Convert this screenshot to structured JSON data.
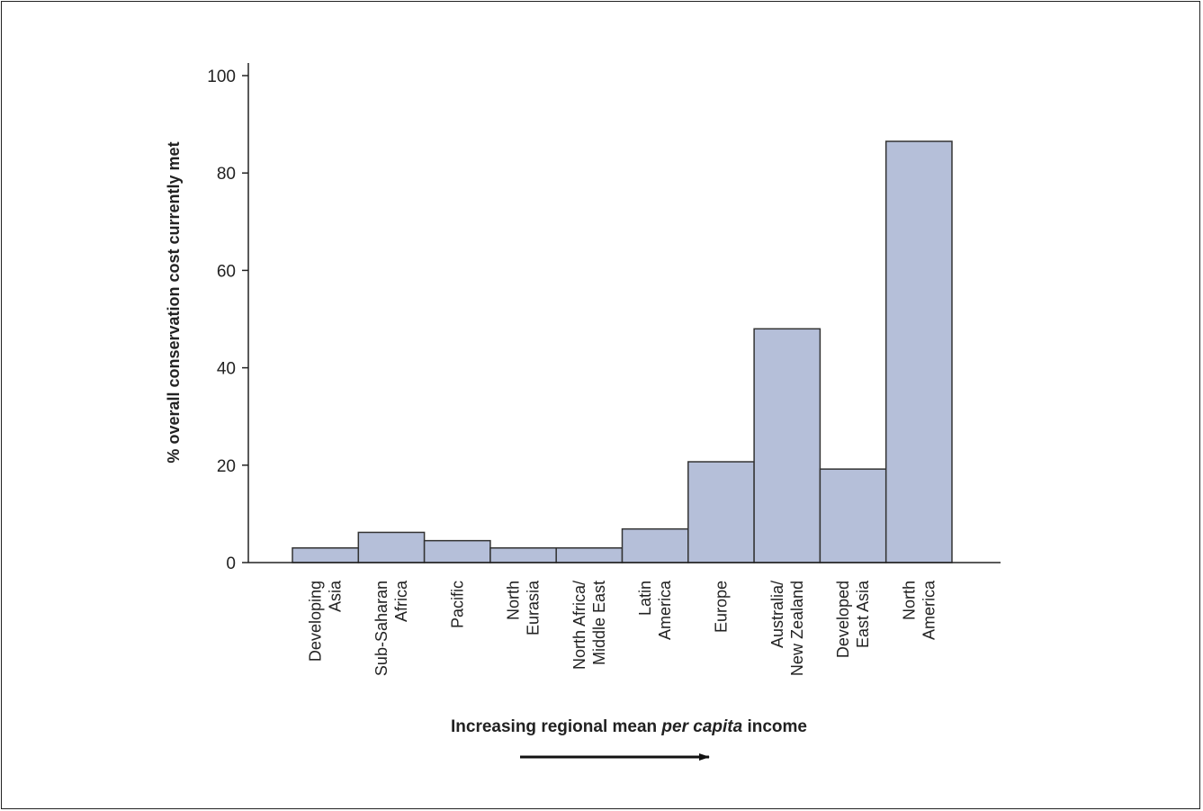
{
  "chart_data": {
    "type": "bar",
    "categories": [
      [
        "Developing",
        "Asia"
      ],
      [
        "Sub-Saharan",
        "Africa"
      ],
      [
        "Pacific"
      ],
      [
        "North",
        "Eurasia"
      ],
      [
        "North Africa/",
        "Middle East"
      ],
      [
        "Latin",
        "America"
      ],
      [
        "Europe"
      ],
      [
        "Australia/",
        "New Zealand"
      ],
      [
        "Developed",
        "East Asia"
      ],
      [
        "North",
        "America"
      ]
    ],
    "values": [
      3,
      6.2,
      4.5,
      3,
      3,
      6.9,
      20.7,
      48,
      19.2,
      86.5
    ],
    "ylabel": "% overall conservation cost currently met",
    "xlabel": {
      "before": "Increasing regional mean ",
      "italic": "per capita",
      "after": " income"
    },
    "ylim": [
      0,
      100
    ],
    "yticks": [
      0,
      20,
      40,
      60,
      80,
      100
    ],
    "grid": false,
    "bar_color": "#b5bfd9",
    "edge_color": "#333333",
    "arrow": "right"
  }
}
